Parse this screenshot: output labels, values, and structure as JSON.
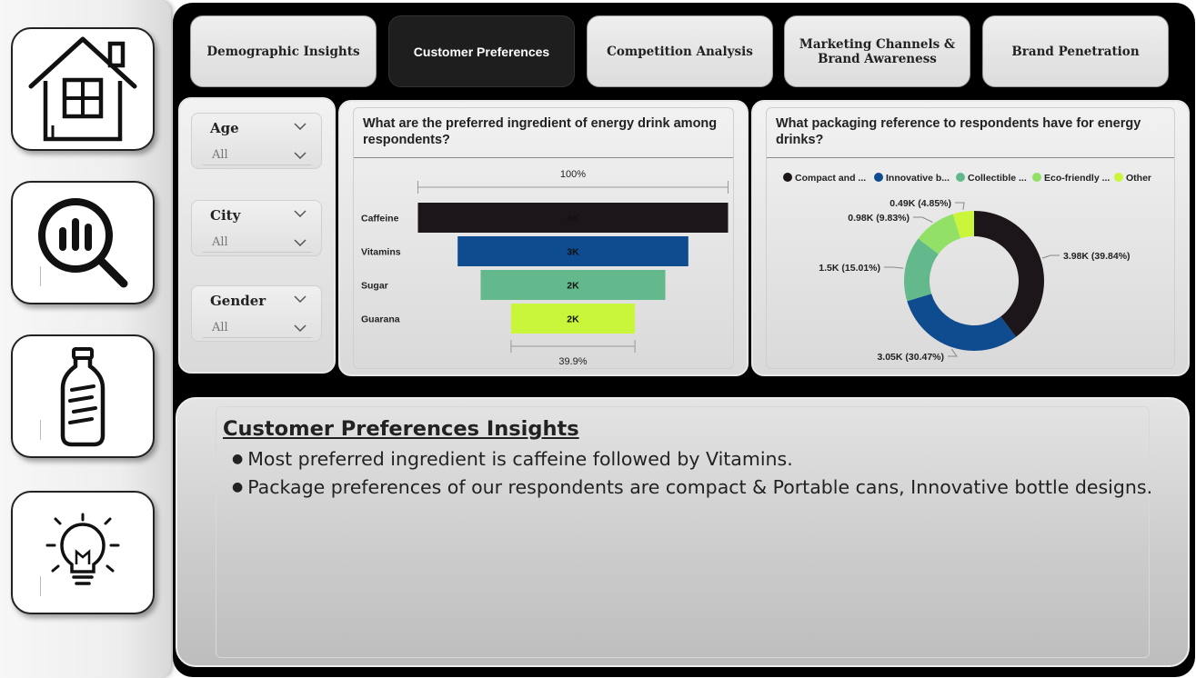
{
  "nav": {
    "tabs": [
      {
        "label": "Demographic Insights",
        "active": false
      },
      {
        "label": "Customer Preferences",
        "active": true
      },
      {
        "label": "Competition Analysis",
        "active": false
      },
      {
        "label": "Marketing Channels & Brand Awareness",
        "active": false
      },
      {
        "label": "Brand Penetration",
        "active": false
      }
    ]
  },
  "sidebar": {
    "icons": [
      "home-icon",
      "analytics-search-icon",
      "bottle-icon",
      "lightbulb-icon"
    ]
  },
  "filters": [
    {
      "title": "Age",
      "value": "All"
    },
    {
      "title": "City",
      "value": "All"
    },
    {
      "title": "Gender",
      "value": "All"
    }
  ],
  "chart_data": [
    {
      "type": "funnel",
      "title": "What are the preferred ingredient of energy drink among respondents?",
      "top_label": "100%",
      "bottom_label": "39.9%",
      "categories": [
        "Caffeine",
        "Vitamins",
        "Sugar",
        "Guarana"
      ],
      "values": [
        3980,
        2960,
        2370,
        1590
      ],
      "data_labels": [
        "4K",
        "3K",
        "2K",
        "2K"
      ],
      "colors": [
        "#1c1519",
        "#0e4c8f",
        "#63b98b",
        "#c9f53a"
      ]
    },
    {
      "type": "pie",
      "donut": true,
      "title": "What packaging reference to respondents have for energy drinks?",
      "legend_position": "top",
      "legend": [
        "Compact and ...",
        "Innovative b...",
        "Collectible ...",
        "Eco-friendly ...",
        "Other"
      ],
      "values": [
        3.98,
        3.05,
        1.5,
        0.98,
        0.49
      ],
      "percents": [
        39.84,
        30.47,
        15.01,
        9.83,
        4.85
      ],
      "data_labels": [
        "3.98K (39.84%)",
        "3.05K (30.47%)",
        "1.5K (15.01%)",
        "0.98K (9.83%)",
        "0.49K (4.85%)"
      ],
      "colors": [
        "#1c1519",
        "#0e4c8f",
        "#63b98b",
        "#93e067",
        "#c9f53a"
      ]
    }
  ],
  "insights": {
    "title": "Customer Preferences Insights ",
    "items": [
      "Most preferred ingredient is caffeine followed by Vitamins.",
      "Package preferences of our respondents are compact & Portable cans, Innovative bottle designs."
    ]
  }
}
